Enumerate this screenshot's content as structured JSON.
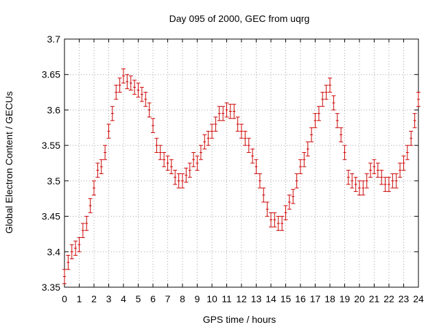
{
  "chart_data": {
    "type": "scatter",
    "title": "Day 095 of 2000, GEC from uqrg",
    "xlabel": "GPS time / hours",
    "ylabel": "Global Electron Content / GECUs",
    "xlim": [
      0,
      24
    ],
    "ylim": [
      3.35,
      3.7
    ],
    "grid": true,
    "x_ticks": [
      0,
      1,
      2,
      3,
      4,
      5,
      6,
      7,
      8,
      9,
      10,
      11,
      12,
      13,
      14,
      15,
      16,
      17,
      18,
      19,
      20,
      21,
      22,
      23,
      24
    ],
    "y_ticks": [
      3.35,
      3.4,
      3.45,
      3.5,
      3.55,
      3.6,
      3.65,
      3.7
    ],
    "y_tick_labels": [
      "3.35",
      "3.4",
      "3.45",
      "3.5",
      "3.55",
      "3.6",
      "3.65",
      "3.7"
    ],
    "x_tick_labels": [
      "0",
      "1",
      "2",
      "3",
      "4",
      "5",
      "6",
      "7",
      "8",
      "9",
      "10",
      "11",
      "12",
      "13",
      "14",
      "15",
      "16",
      "17",
      "18",
      "19",
      "20",
      "21",
      "22",
      "23",
      "24"
    ],
    "error_half_width": 0.01,
    "marker_color": "#cc0000",
    "grid_color": "#a0a0a0",
    "series": [
      {
        "x": [
          0,
          0.25,
          0.5,
          0.75,
          1,
          1.25,
          1.5,
          1.75,
          2,
          2.25,
          2.5,
          2.75,
          3,
          3.25,
          3.5,
          3.75,
          4,
          4.25,
          4.5,
          4.75,
          5,
          5.25,
          5.5,
          5.75,
          6,
          6.25,
          6.5,
          6.75,
          7,
          7.25,
          7.5,
          7.75,
          8,
          8.25,
          8.5,
          8.75,
          9,
          9.25,
          9.5,
          9.75,
          10,
          10.25,
          10.5,
          10.75,
          11,
          11.25,
          11.5,
          11.75,
          12,
          12.25,
          12.5,
          12.75,
          13,
          13.25,
          13.5,
          13.75,
          14,
          14.25,
          14.5,
          14.75,
          15,
          15.25,
          15.5,
          15.75,
          16,
          16.25,
          16.5,
          16.75,
          17,
          17.25,
          17.5,
          17.75,
          18,
          18.25,
          18.5,
          18.75,
          19,
          19.25,
          19.5,
          19.75,
          20,
          20.25,
          20.5,
          20.75,
          21,
          21.25,
          21.5,
          21.75,
          22,
          22.25,
          22.5,
          22.75,
          23,
          23.25,
          23.5,
          23.75,
          24
        ],
        "y": [
          3.365,
          3.385,
          3.4,
          3.405,
          3.41,
          3.43,
          3.44,
          3.465,
          3.49,
          3.515,
          3.52,
          3.54,
          3.57,
          3.595,
          3.625,
          3.635,
          3.648,
          3.64,
          3.638,
          3.632,
          3.628,
          3.622,
          3.615,
          3.6,
          3.578,
          3.55,
          3.54,
          3.53,
          3.525,
          3.52,
          3.505,
          3.5,
          3.5,
          3.508,
          3.515,
          3.53,
          3.525,
          3.54,
          3.555,
          3.56,
          3.57,
          3.58,
          3.595,
          3.595,
          3.6,
          3.598,
          3.598,
          3.58,
          3.57,
          3.56,
          3.55,
          3.535,
          3.52,
          3.5,
          3.48,
          3.46,
          3.445,
          3.445,
          3.44,
          3.44,
          3.455,
          3.47,
          3.478,
          3.5,
          3.52,
          3.53,
          3.545,
          3.565,
          3.585,
          3.595,
          3.615,
          3.625,
          3.635,
          3.61,
          3.585,
          3.565,
          3.54,
          3.505,
          3.5,
          3.495,
          3.49,
          3.49,
          3.5,
          3.515,
          3.52,
          3.515,
          3.505,
          3.495,
          3.495,
          3.5,
          3.5,
          3.515,
          3.525,
          3.54,
          3.56,
          3.585,
          3.615
        ]
      }
    ]
  }
}
